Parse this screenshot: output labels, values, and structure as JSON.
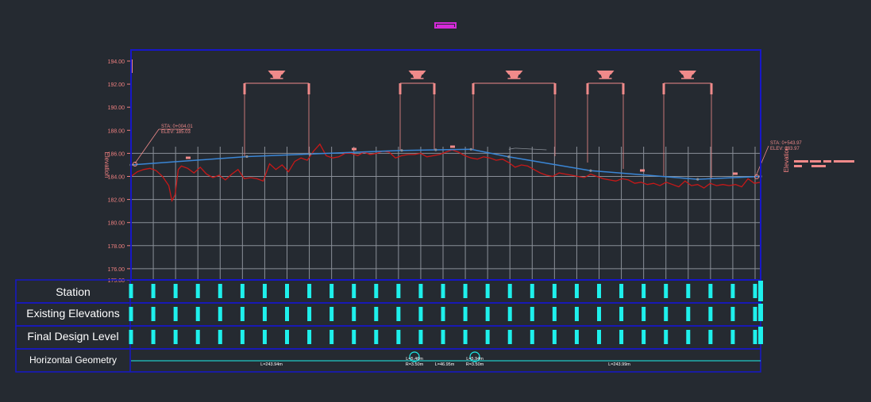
{
  "colors": {
    "background": "#252a31",
    "frame": "#1717c8",
    "grid": "#8a8f98",
    "axis_text": "#f08080",
    "existing_ground": "#c81818",
    "design_line": "#3a86d6",
    "annotation": "#f08a8a",
    "band_tick": "#1ef0ec",
    "band_text": "#ffffff",
    "top_marker": "#d42ad8"
  },
  "chart_data": {
    "type": "line",
    "ylabel_left": "Elevation",
    "ylabel_right": "Elevation",
    "y_ticks": [
      "194.00",
      "192.00",
      "190.00",
      "188.00",
      "186.00",
      "184.00",
      "182.00",
      "180.00",
      "178.00",
      "176.00",
      "175.00"
    ],
    "ylim": [
      175,
      194.5
    ],
    "station_ticks_count": 28,
    "series": [
      {
        "name": "",
        "role": "existing-ground",
        "x": [
          0,
          0.01,
          0.02,
          0.03,
          0.04,
          0.05,
          0.06,
          0.065,
          0.07,
          0.075,
          0.08,
          0.09,
          0.1,
          0.11,
          0.12,
          0.13,
          0.14,
          0.15,
          0.16,
          0.17,
          0.18,
          0.19,
          0.2,
          0.21,
          0.22,
          0.23,
          0.24,
          0.25,
          0.26,
          0.27,
          0.28,
          0.29,
          0.3,
          0.31,
          0.32,
          0.33,
          0.34,
          0.35,
          0.36,
          0.37,
          0.38,
          0.39,
          0.4,
          0.41,
          0.42,
          0.43,
          0.44,
          0.45,
          0.46,
          0.47,
          0.48,
          0.49,
          0.5,
          0.51,
          0.52,
          0.53,
          0.54,
          0.55,
          0.56,
          0.57,
          0.58,
          0.59,
          0.6,
          0.61,
          0.62,
          0.63,
          0.64,
          0.65,
          0.66,
          0.67,
          0.68,
          0.69,
          0.7,
          0.71,
          0.72,
          0.73,
          0.74,
          0.75,
          0.76,
          0.77,
          0.78,
          0.79,
          0.8,
          0.81,
          0.82,
          0.83,
          0.84,
          0.85,
          0.86,
          0.87,
          0.88,
          0.89,
          0.9,
          0.91,
          0.92,
          0.93,
          0.94,
          0.95,
          0.96,
          0.97,
          0.98,
          0.99,
          1.0
        ],
        "y": [
          184.0,
          184.4,
          184.6,
          184.7,
          184.5,
          184.0,
          183.2,
          181.9,
          182.4,
          184.6,
          184.9,
          184.7,
          184.3,
          184.8,
          184.2,
          183.9,
          184.1,
          183.7,
          184.2,
          184.6,
          183.8,
          183.9,
          183.8,
          183.6,
          185.1,
          184.6,
          185.0,
          184.4,
          185.3,
          185.6,
          185.4,
          186.2,
          186.8,
          185.8,
          185.6,
          185.7,
          186.0,
          186.0,
          185.8,
          186.1,
          185.9,
          186.0,
          186.2,
          186.1,
          185.6,
          185.8,
          185.9,
          185.9,
          186.0,
          185.7,
          185.8,
          185.9,
          186.1,
          186.3,
          186.1,
          185.8,
          185.6,
          185.5,
          185.7,
          185.6,
          185.4,
          185.5,
          185.2,
          184.8,
          185.0,
          184.9,
          184.6,
          184.3,
          184.1,
          184.0,
          184.3,
          184.2,
          184.1,
          184.0,
          183.9,
          184.2,
          184.0,
          183.8,
          183.7,
          183.6,
          183.8,
          183.7,
          183.4,
          183.5,
          183.3,
          183.4,
          183.2,
          183.5,
          183.3,
          183.1,
          183.6,
          183.2,
          183.3,
          183.0,
          183.4,
          183.2,
          183.3,
          183.2,
          183.3,
          183.1,
          183.8,
          183.4,
          183.5
        ]
      },
      {
        "name": "",
        "role": "final-design",
        "x": [
          0,
          0.184,
          0.284,
          0.43,
          0.484,
          0.54,
          0.6,
          0.73,
          0.9,
          1.0
        ],
        "y": [
          185.0,
          185.72,
          185.94,
          186.25,
          186.3,
          186.35,
          185.7,
          184.5,
          183.75,
          184.0
        ]
      }
    ],
    "side_labels": [
      {
        "side": "left",
        "sta": "STA: 0+004.01",
        "elev": "ELEV: 185.03"
      },
      {
        "side": "right",
        "sta": "STA: 0+543.97",
        "elev": "ELEV: 183.97"
      }
    ],
    "curve_brackets_count": 5,
    "bands": [
      {
        "label": "Station"
      },
      {
        "label": "Existing Elevations"
      },
      {
        "label": "Final Design Level"
      },
      {
        "label": "Horizontal Geometry"
      }
    ],
    "horizontal_geometry": {
      "segments": [
        {
          "text": "L=243.94m"
        },
        {
          "text": "L=5.46m",
          "sub": "R=3.50m"
        },
        {
          "text": "L=46.95m"
        },
        {
          "text": "L=5.94m",
          "sub": "R=3.50m"
        },
        {
          "text": "L=243.99m"
        }
      ]
    }
  }
}
